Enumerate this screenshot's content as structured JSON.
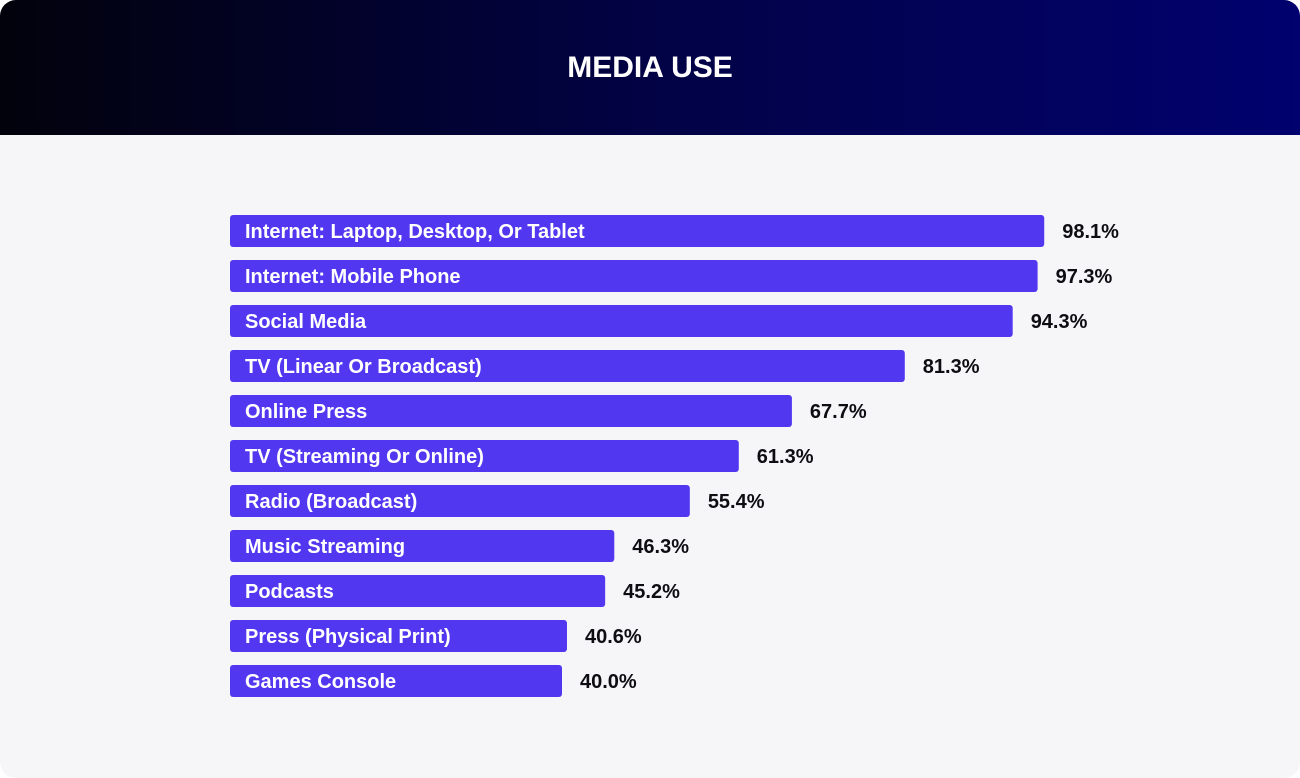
{
  "chart_data": {
    "type": "bar",
    "orientation": "horizontal",
    "title": "MEDIA USE",
    "xlabel": "",
    "ylabel": "",
    "xlim": [
      0,
      100
    ],
    "grid": false,
    "categories": [
      "Internet: Laptop, Desktop, Or Tablet",
      "Internet: Mobile Phone",
      "Social Media",
      "TV (Linear Or Broadcast)",
      "Online Press",
      "TV (Streaming Or Online)",
      "Radio (Broadcast)",
      "Music Streaming",
      "Podcasts",
      "Press (Physical Print)",
      "Games Console"
    ],
    "values": [
      98.1,
      97.3,
      94.3,
      81.3,
      67.7,
      61.3,
      55.4,
      46.3,
      45.2,
      40.6,
      40.0
    ],
    "value_labels": [
      "98.1%",
      "97.3%",
      "94.3%",
      "81.3%",
      "67.7%",
      "61.3%",
      "55.4%",
      "46.3%",
      "45.2%",
      "40.6%",
      "40.0%"
    ],
    "colors": {
      "bar": "#5237f1",
      "header_start": "#02020c",
      "header_end": "#01016f",
      "background": "#f6f6f9"
    }
  }
}
